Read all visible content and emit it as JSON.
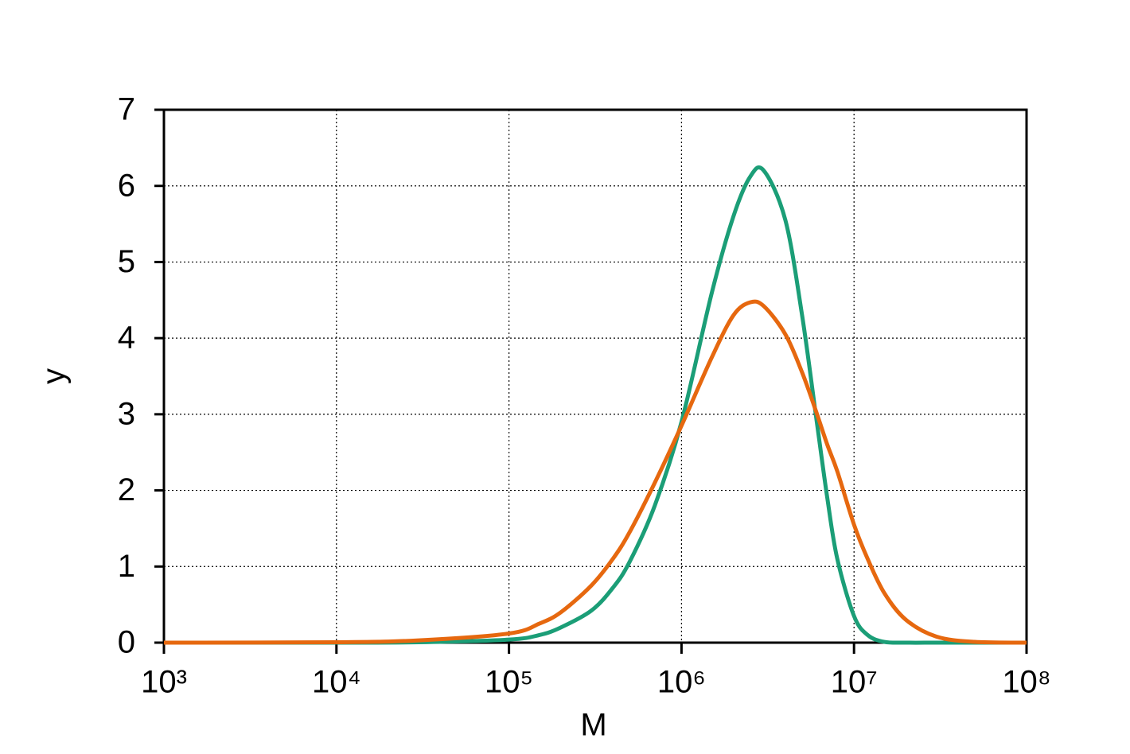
{
  "chart_data": {
    "type": "line",
    "x_label": "M",
    "y_label": "y",
    "x_scale": "log",
    "grid": true,
    "xlim": [
      1000,
      100000000
    ],
    "ylim": [
      0,
      7
    ],
    "xticks": [
      {
        "value": 1000,
        "label": "10³"
      },
      {
        "value": 10000,
        "label": "10⁴"
      },
      {
        "value": 100000,
        "label": "10⁵"
      },
      {
        "value": 1000000,
        "label": "10⁶"
      },
      {
        "value": 10000000,
        "label": "10⁷"
      },
      {
        "value": 100000000,
        "label": "10⁸"
      }
    ],
    "yticks": [
      0,
      1,
      2,
      3,
      4,
      5,
      6,
      7
    ],
    "x": [
      1000,
      10000,
      30000,
      100000,
      150000,
      200000,
      300000,
      400000,
      500000,
      700000,
      1000000,
      1500000,
      2000000,
      2500000,
      3000000,
      4000000,
      5000000,
      6000000,
      7000000,
      8000000,
      10000000,
      12000000,
      15000000,
      20000000,
      30000000,
      50000000,
      100000000
    ],
    "series": [
      {
        "color": "#1b9e77",
        "values": [
          0,
          0,
          0.005,
          0.04,
          0.1,
          0.2,
          0.42,
          0.72,
          1.06,
          1.8,
          2.9,
          4.6,
          5.6,
          6.12,
          6.2,
          5.55,
          4.3,
          3.0,
          1.9,
          1.1,
          0.35,
          0.1,
          0.01,
          0,
          0,
          0,
          0
        ]
      },
      {
        "color": "#e6680f",
        "values": [
          0,
          0.005,
          0.03,
          0.12,
          0.25,
          0.4,
          0.75,
          1.1,
          1.45,
          2.1,
          2.85,
          3.75,
          4.3,
          4.47,
          4.42,
          4.05,
          3.55,
          3.05,
          2.6,
          2.25,
          1.55,
          1.1,
          0.65,
          0.3,
          0.08,
          0.01,
          0
        ]
      }
    ]
  }
}
